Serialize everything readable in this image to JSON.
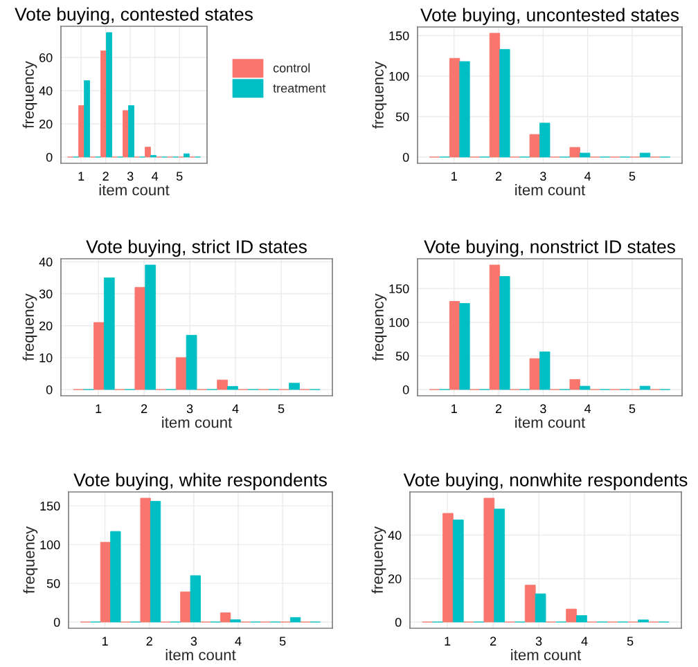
{
  "chart_data": [
    {
      "type": "histogram",
      "title": "Vote buying, contested states",
      "xlabel": "item count",
      "ylabel": "frequency",
      "bins": [
        0.45,
        0.9,
        1.35,
        1.8,
        2.25,
        2.7,
        3.15,
        3.6,
        4.05,
        4.5,
        4.95,
        5.4,
        5.85
      ],
      "series": [
        {
          "name": "control",
          "color": "#f8766d",
          "values": [
            0,
            31,
            0,
            64,
            0,
            28,
            0,
            6,
            0,
            0,
            0,
            0
          ]
        },
        {
          "name": "treatment",
          "color": "#00bfc4",
          "values": [
            0,
            46,
            0,
            75,
            0,
            31,
            0,
            1,
            0,
            0,
            2,
            0
          ]
        }
      ],
      "xlim": [
        0.18,
        6.12
      ],
      "xticks": [
        1,
        2,
        3,
        4,
        5
      ],
      "ylim": [
        -3.75,
        78.75
      ],
      "yticks": [
        0,
        20,
        40,
        60
      ],
      "grid": true,
      "legend": "right"
    },
    {
      "type": "histogram",
      "title": "Vote buying, uncontested states",
      "xlabel": "item count",
      "ylabel": "frequency",
      "bins": [
        0.45,
        0.9,
        1.35,
        1.8,
        2.25,
        2.7,
        3.15,
        3.6,
        4.05,
        4.5,
        4.95,
        5.4,
        5.85
      ],
      "series": [
        {
          "color": "#f8766d",
          "values": [
            0,
            122,
            0,
            153,
            0,
            28,
            0,
            12,
            0,
            0,
            0,
            0
          ]
        },
        {
          "color": "#00bfc4",
          "values": [
            0,
            118,
            0,
            133,
            0,
            42,
            0,
            5,
            0,
            0,
            5,
            0
          ]
        }
      ],
      "xlim": [
        0.18,
        6.12
      ],
      "xticks": [
        1,
        2,
        3,
        4,
        5
      ],
      "ylim": [
        -7.65,
        160.65
      ],
      "yticks": [
        0,
        50,
        100,
        150
      ],
      "grid": true
    },
    {
      "type": "histogram",
      "title": "Vote buying, strict ID states",
      "xlabel": "item count",
      "ylabel": "frequency",
      "bins": [
        0.45,
        0.9,
        1.35,
        1.8,
        2.25,
        2.7,
        3.15,
        3.6,
        4.05,
        4.5,
        4.95,
        5.4,
        5.85
      ],
      "series": [
        {
          "color": "#f8766d",
          "values": [
            0,
            21,
            0,
            32,
            0,
            10,
            0,
            3,
            0,
            0,
            0,
            0
          ]
        },
        {
          "color": "#00bfc4",
          "values": [
            0,
            35,
            0,
            39,
            0,
            17,
            0,
            1,
            0,
            0,
            2,
            0
          ]
        }
      ],
      "xlim": [
        0.18,
        6.12
      ],
      "xticks": [
        1,
        2,
        3,
        4,
        5
      ],
      "ylim": [
        -1.95,
        40.95
      ],
      "yticks": [
        0,
        10,
        20,
        30,
        40
      ],
      "grid": true
    },
    {
      "type": "histogram",
      "title": "Vote buying, nonstrict ID states",
      "xlabel": "item count",
      "ylabel": "frequency",
      "bins": [
        0.45,
        0.9,
        1.35,
        1.8,
        2.25,
        2.7,
        3.15,
        3.6,
        4.05,
        4.5,
        4.95,
        5.4,
        5.85
      ],
      "series": [
        {
          "color": "#f8766d",
          "values": [
            0,
            131,
            0,
            185,
            0,
            46,
            0,
            15,
            0,
            0,
            0,
            0
          ]
        },
        {
          "color": "#00bfc4",
          "values": [
            0,
            128,
            0,
            168,
            0,
            56,
            0,
            5,
            0,
            0,
            5,
            0
          ]
        }
      ],
      "xlim": [
        0.18,
        6.12
      ],
      "xticks": [
        1,
        2,
        3,
        4,
        5
      ],
      "ylim": [
        -9.25,
        194.25
      ],
      "yticks": [
        0,
        50,
        100,
        150
      ],
      "grid": true
    },
    {
      "type": "histogram",
      "title": "Vote buying, white respondents",
      "xlabel": "item count",
      "ylabel": "frequency",
      "bins": [
        0.45,
        0.9,
        1.35,
        1.8,
        2.25,
        2.7,
        3.15,
        3.6,
        4.05,
        4.5,
        4.95,
        5.4,
        5.85
      ],
      "series": [
        {
          "color": "#f8766d",
          "values": [
            0,
            103,
            0,
            160,
            0,
            39,
            0,
            12,
            0,
            0,
            0,
            0
          ]
        },
        {
          "color": "#00bfc4",
          "values": [
            0,
            117,
            0,
            156,
            0,
            60,
            0,
            3,
            0,
            0,
            6,
            0
          ]
        }
      ],
      "xlim": [
        0.18,
        6.12
      ],
      "xticks": [
        1,
        2,
        3,
        4,
        5
      ],
      "ylim": [
        -8,
        168
      ],
      "yticks": [
        0,
        50,
        100,
        150
      ],
      "grid": true
    },
    {
      "type": "histogram",
      "title": "Vote buying, nonwhite respondents",
      "xlabel": "item count",
      "ylabel": "frequency",
      "bins": [
        0.45,
        0.9,
        1.35,
        1.8,
        2.25,
        2.7,
        3.15,
        3.6,
        4.05,
        4.5,
        4.95,
        5.4,
        5.85
      ],
      "series": [
        {
          "color": "#f8766d",
          "values": [
            0,
            50,
            0,
            57,
            0,
            17,
            0,
            6,
            0,
            0,
            0,
            0
          ]
        },
        {
          "color": "#00bfc4",
          "values": [
            0,
            47,
            0,
            52,
            0,
            13,
            0,
            3,
            0,
            0,
            1,
            0
          ]
        }
      ],
      "xlim": [
        0.18,
        6.12
      ],
      "xticks": [
        1,
        2,
        3,
        4,
        5
      ],
      "ylim": [
        -2.85,
        59.85
      ],
      "yticks": [
        0,
        20,
        40
      ],
      "grid": true
    }
  ]
}
